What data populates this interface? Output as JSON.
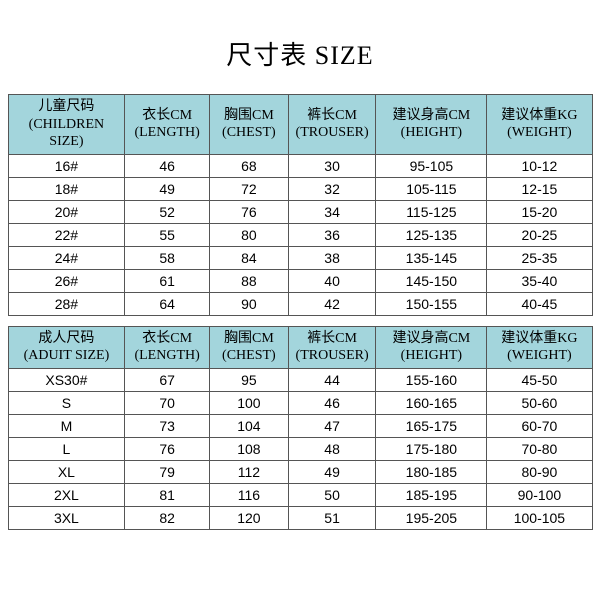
{
  "title": "尺寸表 SIZE",
  "header_bg": "#a3d5dc",
  "row_bg": "#ffffff",
  "border_color": "#555555",
  "children": {
    "columns": [
      {
        "cn": "儿童尺码",
        "en": "(CHILDREN SIZE)"
      },
      {
        "cn": "衣长CM",
        "en": "(LENGTH)"
      },
      {
        "cn": "胸围CM",
        "en": "(CHEST)"
      },
      {
        "cn": "裤长CM",
        "en": "(TROUSER)"
      },
      {
        "cn": "建议身高CM",
        "en": "(HEIGHT)"
      },
      {
        "cn": "建议体重KG",
        "en": "(WEIGHT)"
      }
    ],
    "rows": [
      [
        "16#",
        "46",
        "68",
        "30",
        "95-105",
        "10-12"
      ],
      [
        "18#",
        "49",
        "72",
        "32",
        "105-115",
        "12-15"
      ],
      [
        "20#",
        "52",
        "76",
        "34",
        "115-125",
        "15-20"
      ],
      [
        "22#",
        "55",
        "80",
        "36",
        "125-135",
        "20-25"
      ],
      [
        "24#",
        "58",
        "84",
        "38",
        "135-145",
        "25-35"
      ],
      [
        "26#",
        "61",
        "88",
        "40",
        "145-150",
        "35-40"
      ],
      [
        "28#",
        "64",
        "90",
        "42",
        "150-155",
        "40-45"
      ]
    ]
  },
  "adult": {
    "columns": [
      {
        "cn": "成人尺码",
        "en": "(ADUIT SIZE)"
      },
      {
        "cn": "衣长CM",
        "en": "(LENGTH)"
      },
      {
        "cn": "胸围CM",
        "en": "(CHEST)"
      },
      {
        "cn": "裤长CM",
        "en": "(TROUSER)"
      },
      {
        "cn": "建议身高CM",
        "en": "(HEIGHT)"
      },
      {
        "cn": "建议体重KG",
        "en": "(WEIGHT)"
      }
    ],
    "rows": [
      [
        "XS30#",
        "67",
        "95",
        "44",
        "155-160",
        "45-50"
      ],
      [
        "S",
        "70",
        "100",
        "46",
        "160-165",
        "50-60"
      ],
      [
        "M",
        "73",
        "104",
        "47",
        "165-175",
        "60-70"
      ],
      [
        "L",
        "76",
        "108",
        "48",
        "175-180",
        "70-80"
      ],
      [
        "XL",
        "79",
        "112",
        "49",
        "180-185",
        "80-90"
      ],
      [
        "2XL",
        "81",
        "116",
        "50",
        "185-195",
        "90-100"
      ],
      [
        "3XL",
        "82",
        "120",
        "51",
        "195-205",
        "100-105"
      ]
    ]
  }
}
